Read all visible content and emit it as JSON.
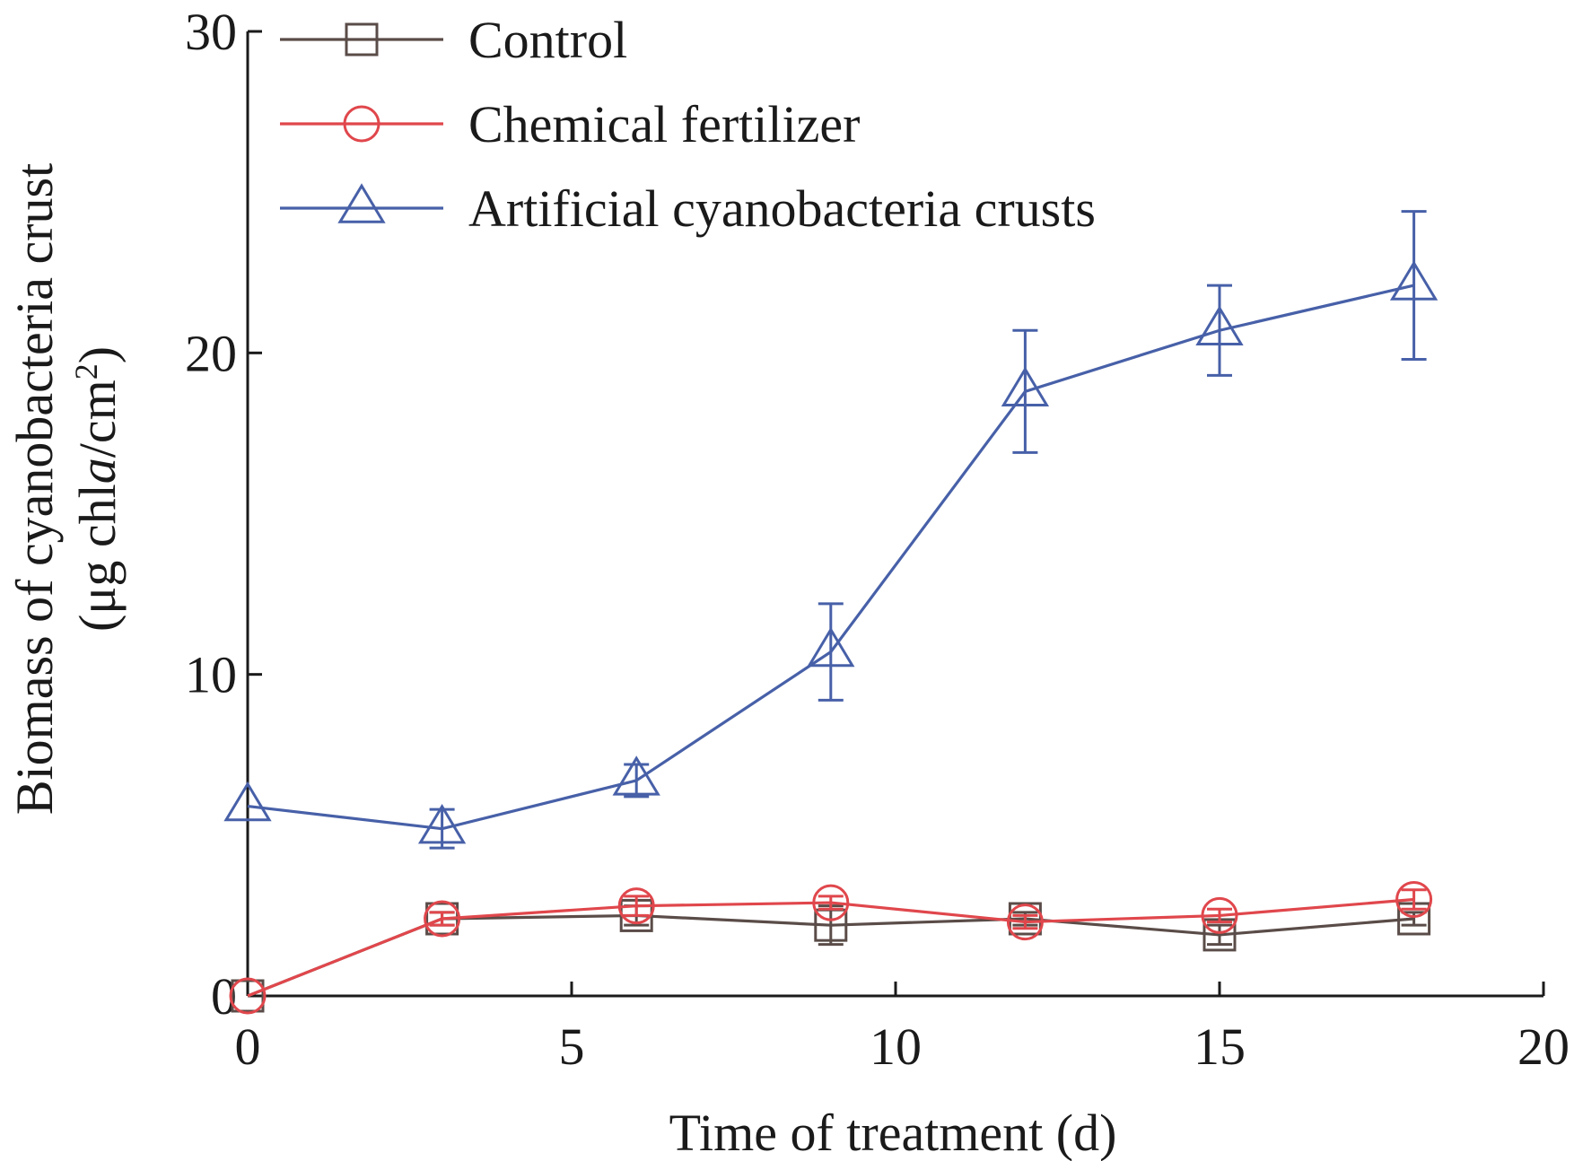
{
  "chart_data": {
    "type": "line",
    "xlabel": "Time of treatment (d)",
    "ylabel_line1": "Biomass of cyanobacteria crust",
    "ylabel_line2_prefix": "(μg chl",
    "ylabel_line2_italic": "a",
    "ylabel_line2_unit": "/cm",
    "ylabel_line2_sup": "2",
    "ylabel_line2_suffix": ")",
    "xlim": [
      0,
      20
    ],
    "ylim": [
      0,
      30
    ],
    "xticks": [
      "0",
      "5",
      "10",
      "15",
      "20"
    ],
    "yticks": [
      "0",
      "10",
      "20",
      "30"
    ],
    "legend_position": "top-left",
    "x": [
      0,
      3,
      6,
      9,
      12,
      15,
      18
    ],
    "series": [
      {
        "name": "Control",
        "marker": "square",
        "color": "#5a4c48",
        "values": [
          0.0,
          2.4,
          2.5,
          2.2,
          2.4,
          1.9,
          2.4
        ],
        "errors": [
          0.0,
          0.2,
          0.3,
          0.6,
          0.2,
          0.3,
          0.2
        ]
      },
      {
        "name": "Chemical fertilizer",
        "marker": "circle",
        "color": "#e0474c",
        "values": [
          0.0,
          2.4,
          2.8,
          2.9,
          2.3,
          2.5,
          3.0
        ],
        "errors": [
          0.0,
          0.2,
          0.3,
          0.2,
          0.2,
          0.2,
          0.3
        ]
      },
      {
        "name": "Artificial cyanobacteria crusts",
        "marker": "triangle",
        "color": "#4760a8",
        "values": [
          5.9,
          5.2,
          6.7,
          10.7,
          18.8,
          20.7,
          22.1
        ],
        "errors": [
          0.0,
          0.6,
          0.5,
          1.5,
          1.9,
          1.4,
          2.3
        ]
      }
    ]
  }
}
